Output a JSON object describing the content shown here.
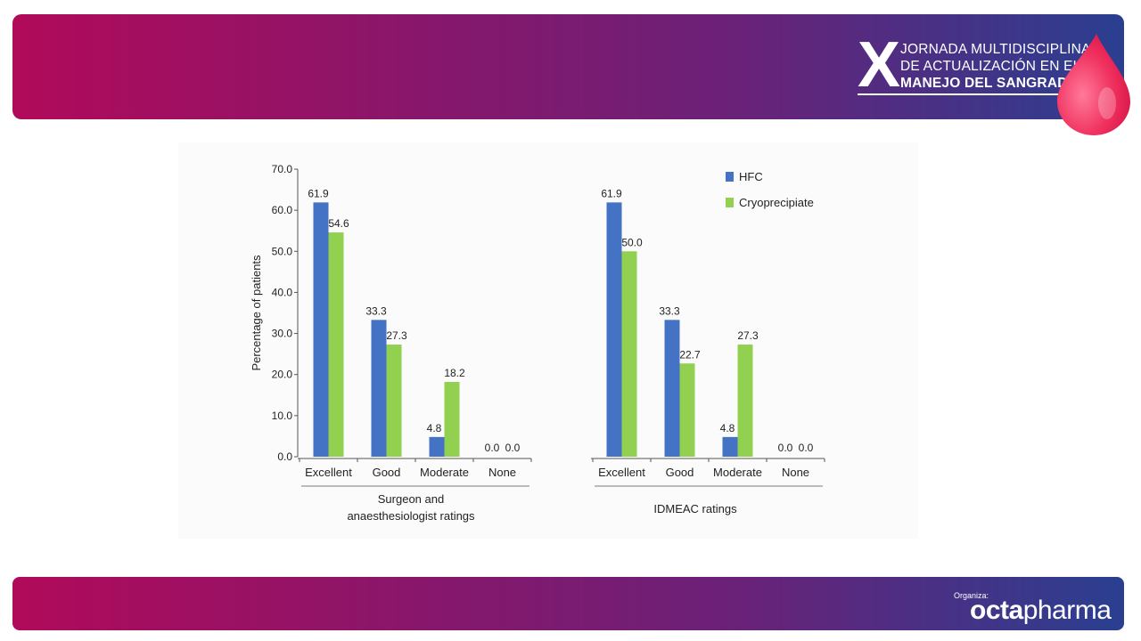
{
  "event": {
    "numeral": "X",
    "line1": "JORNADA MULTIDISCIPLINAR",
    "line2": "DE ACTUALIZACIÓN EN EL",
    "line3": "MANEJO DEL SANGRADO"
  },
  "footer": {
    "organiza": "Organiza:",
    "brand_bold": "octa",
    "brand_regular": "pharma"
  },
  "colors": {
    "hfc": "#4472C4",
    "cryo": "#92D050"
  },
  "chart_data": {
    "type": "bar",
    "ylabel": "Percentage of patients",
    "ylim": [
      0,
      70
    ],
    "yticks": [
      "0.0",
      "10.0",
      "20.0",
      "30.0",
      "40.0",
      "50.0",
      "60.0",
      "70.0"
    ],
    "legend": [
      "HFC",
      "Cryoprecipiate"
    ],
    "legend_position": "top-right",
    "groups": [
      {
        "label_lines": [
          "Surgeon and",
          "anaesthesiologist ratings"
        ],
        "categories": [
          "Excellent",
          "Good",
          "Moderate",
          "None"
        ],
        "series": [
          {
            "name": "HFC",
            "values": [
              61.9,
              33.3,
              4.8,
              0.0
            ],
            "labels": [
              "61.9",
              "33.3",
              "4.8",
              "0.0"
            ]
          },
          {
            "name": "Cryoprecipiate",
            "values": [
              54.6,
              27.3,
              18.2,
              0.0
            ],
            "labels": [
              "54.6",
              "27.3",
              "18.2",
              "0.0"
            ]
          }
        ]
      },
      {
        "label_lines": [
          "IDMEAC ratings"
        ],
        "categories": [
          "Excellent",
          "Good",
          "Moderate",
          "None"
        ],
        "series": [
          {
            "name": "HFC",
            "values": [
              61.9,
              33.3,
              4.8,
              0.0
            ],
            "labels": [
              "61.9",
              "33.3",
              "4.8",
              "0.0"
            ]
          },
          {
            "name": "Cryoprecipiate",
            "values": [
              50.0,
              22.7,
              27.3,
              0.0
            ],
            "labels": [
              "50.0",
              "22.7",
              "27.3",
              "0.0"
            ]
          }
        ]
      }
    ]
  }
}
